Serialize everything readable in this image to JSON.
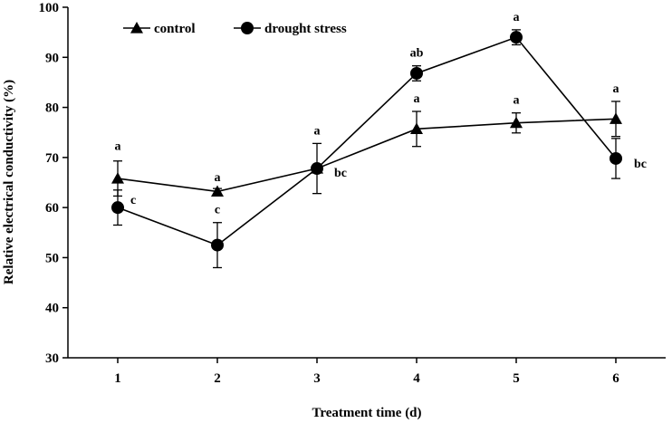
{
  "chart_data": {
    "type": "line",
    "title": "",
    "xlabel": "Treatment time (d)",
    "ylabel": "Relative electrical conductivity (%)",
    "x": [
      1,
      2,
      3,
      4,
      5,
      6
    ],
    "x_tick_labels": [
      "1",
      "2",
      "3",
      "4",
      "5",
      "6"
    ],
    "xlim": [
      0.5,
      6.5
    ],
    "ylim": [
      30,
      100
    ],
    "y_ticks": [
      30,
      40,
      50,
      60,
      70,
      80,
      90,
      100
    ],
    "y_tick_labels": [
      "30",
      "40",
      "50",
      "60",
      "70",
      "80",
      "90",
      "100"
    ],
    "grid": false,
    "legend_position": "top-left",
    "series": [
      {
        "name": "control",
        "marker": "triangle",
        "color": "#000000",
        "values": [
          65.8,
          63.2,
          67.8,
          75.7,
          76.9,
          77.7
        ],
        "errors": [
          3.5,
          0.6,
          5.0,
          3.5,
          2.0,
          3.5
        ],
        "significance": [
          "a",
          "a",
          "a",
          "a",
          "a",
          "a"
        ]
      },
      {
        "name": "drought stress",
        "marker": "circle",
        "color": "#000000",
        "values": [
          60.0,
          52.5,
          67.8,
          86.8,
          94.0,
          69.8
        ],
        "errors": [
          3.5,
          4.5,
          0.5,
          1.5,
          1.5,
          4.0
        ],
        "significance": [
          "c",
          "c",
          "bc",
          "ab",
          "a",
          "bc"
        ]
      }
    ]
  }
}
